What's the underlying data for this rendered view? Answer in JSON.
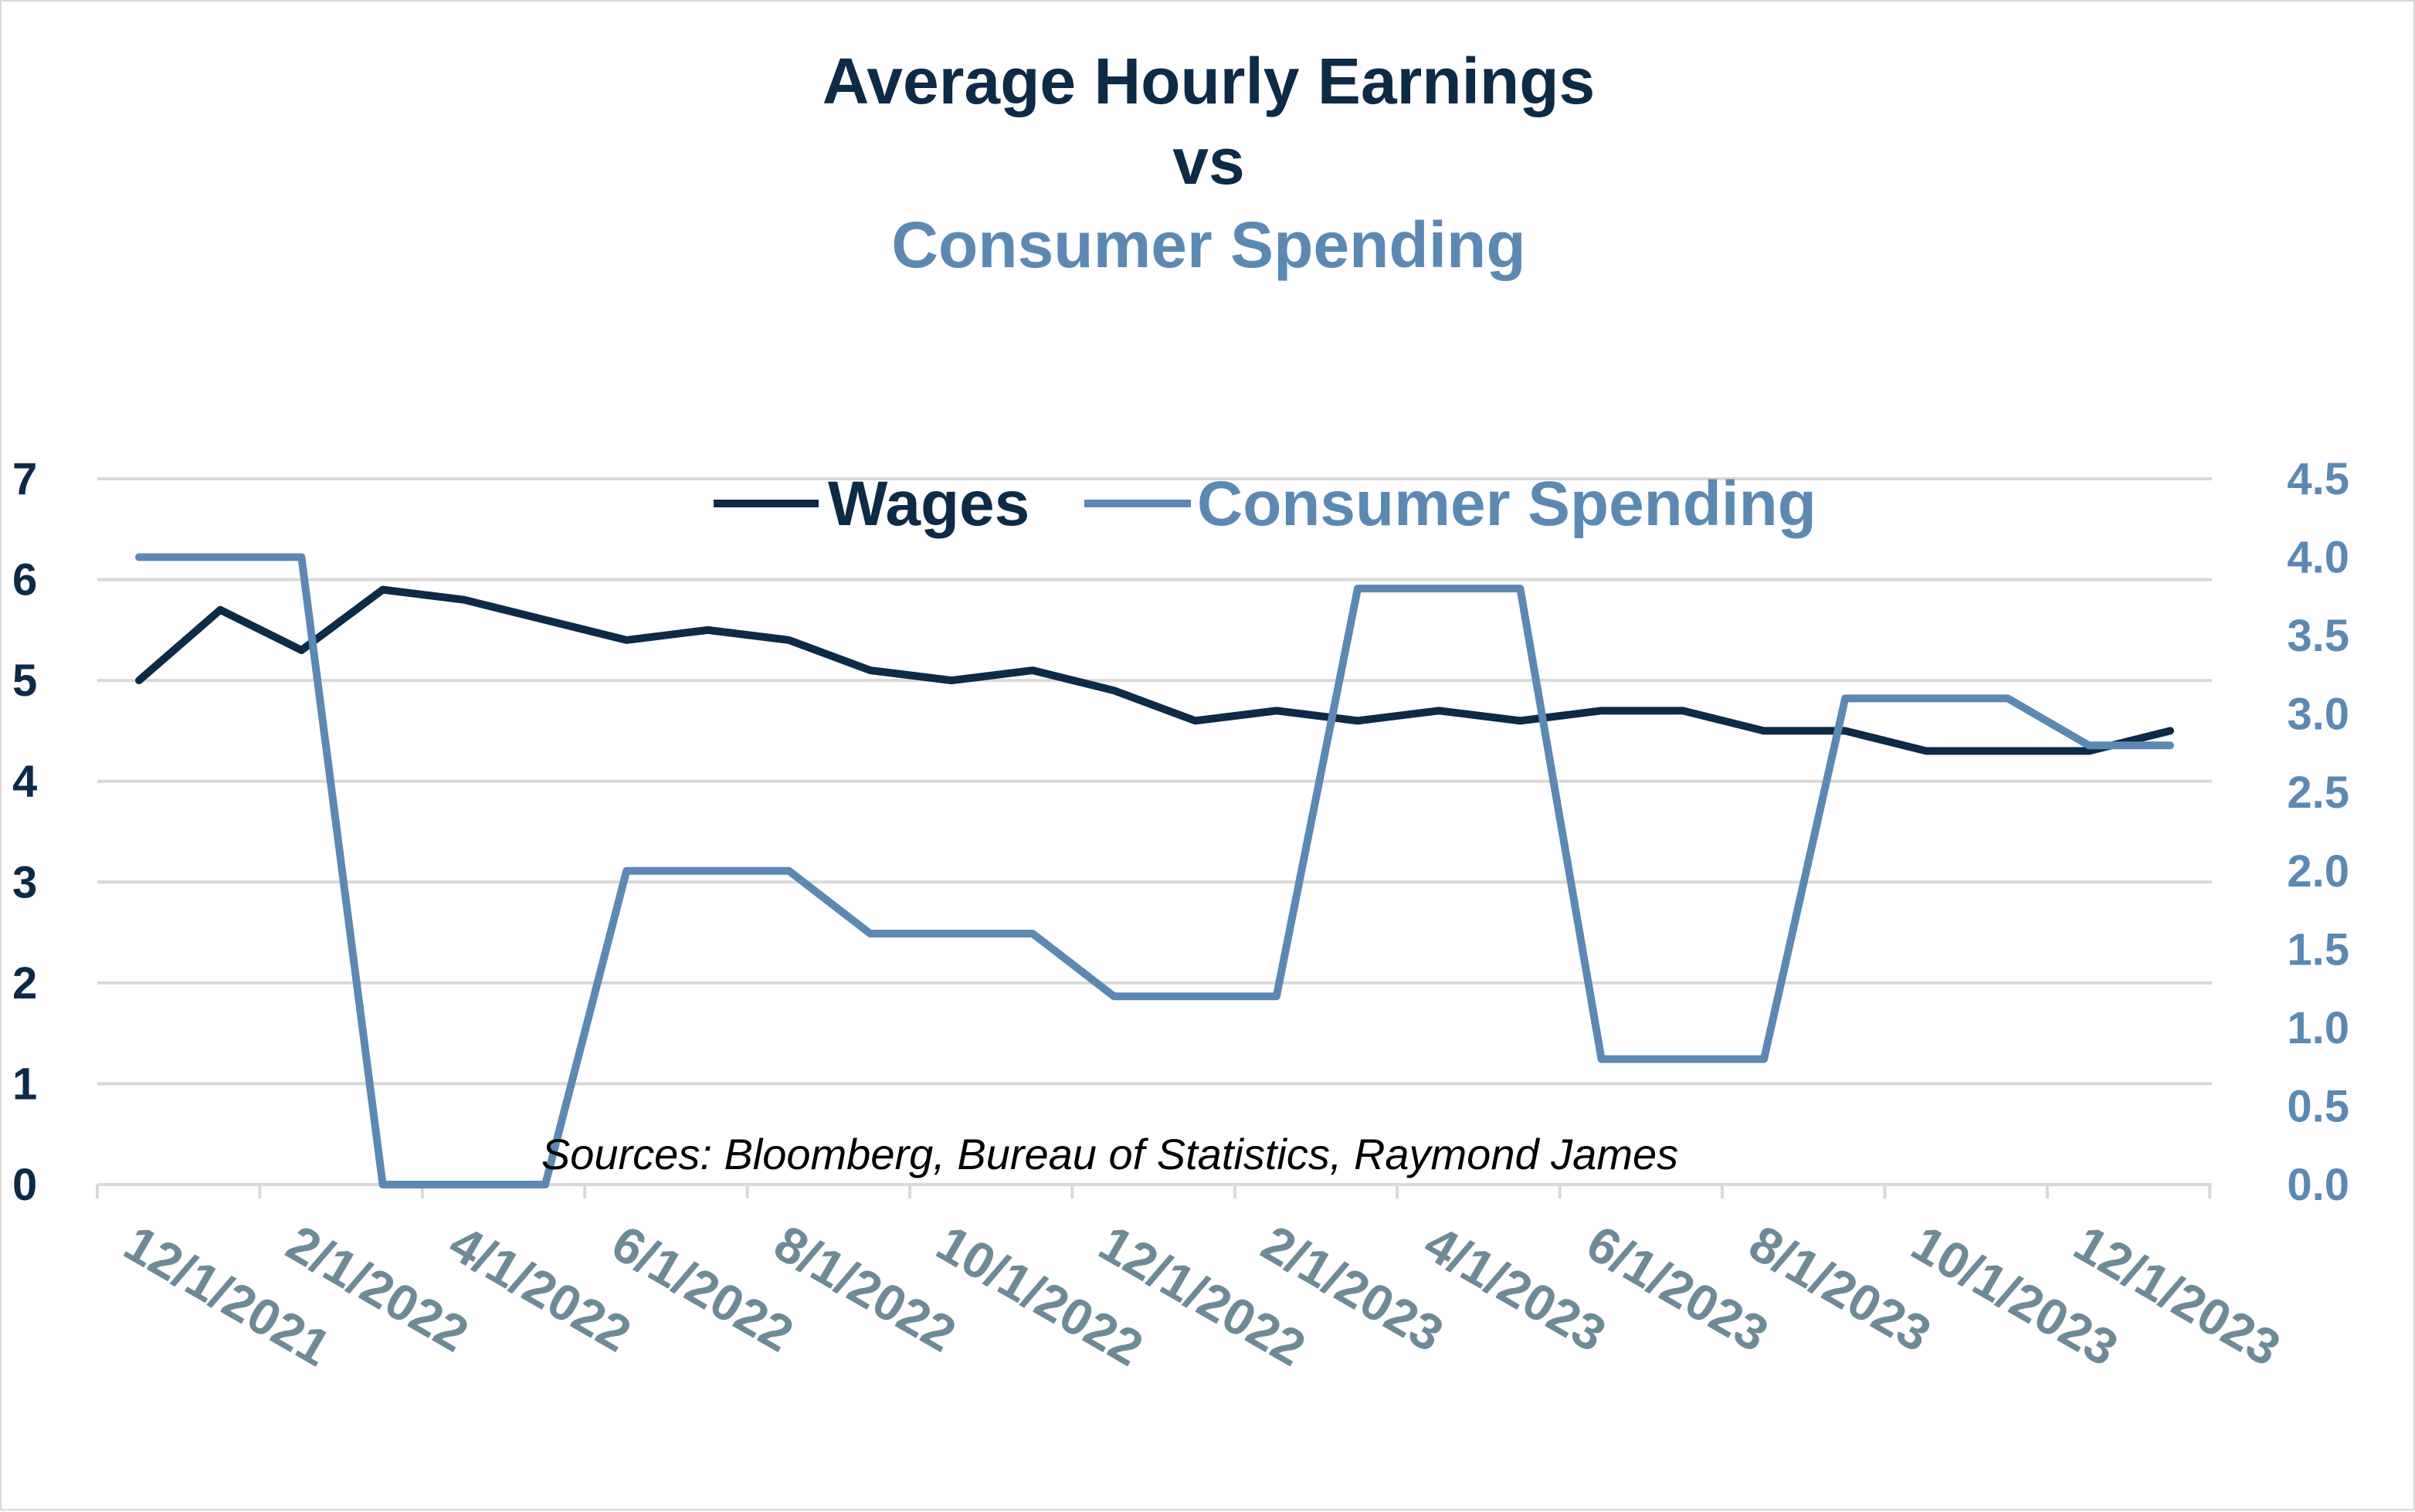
{
  "chart_data": {
    "type": "line",
    "title_lines": [
      "Average Hourly Earnings",
      "vs",
      "Consumer Spending"
    ],
    "x": [
      "12/1/2021",
      "1/1/2022",
      "2/1/2022",
      "3/1/2022",
      "4/1/2022",
      "5/1/2022",
      "6/1/2022",
      "7/1/2022",
      "8/1/2022",
      "9/1/2022",
      "10/1/2022",
      "11/1/2022",
      "12/1/2022",
      "1/1/2023",
      "2/1/2023",
      "3/1/2023",
      "4/1/2023",
      "5/1/2023",
      "6/1/2023",
      "7/1/2023",
      "8/1/2023",
      "9/1/2023",
      "10/1/2023",
      "11/1/2023",
      "12/1/2023",
      "1/1/2024"
    ],
    "x_tick_labels": [
      "12/1/2021",
      "2/1/2022",
      "4/1/2022",
      "6/1/2022",
      "8/1/2022",
      "10/1/2022",
      "12/1/2022",
      "2/1/2023",
      "4/1/2023",
      "6/1/2023",
      "8/1/2023",
      "10/1/2023",
      "12/1/2023"
    ],
    "y_left": {
      "ylim": [
        0,
        7
      ],
      "ticks": [
        "0",
        "1",
        "2",
        "3",
        "4",
        "5",
        "6",
        "7"
      ]
    },
    "y_right": {
      "ylim": [
        0,
        4.5
      ],
      "ticks": [
        "0.0",
        "0.5",
        "1.0",
        "1.5",
        "2.0",
        "2.5",
        "3.0",
        "3.5",
        "4.0",
        "4.5"
      ]
    },
    "series": [
      {
        "name": "Wages",
        "axis": "left",
        "color": "#0d2a47",
        "values": [
          5.0,
          5.7,
          5.3,
          5.9,
          5.8,
          5.6,
          5.4,
          5.5,
          5.4,
          5.1,
          5.0,
          5.1,
          4.9,
          4.6,
          4.7,
          4.6,
          4.7,
          4.6,
          4.7,
          4.7,
          4.5,
          4.5,
          4.3,
          4.3,
          4.3,
          4.5
        ]
      },
      {
        "name": "Consumer Spending",
        "axis": "right",
        "color": "#5b89b4",
        "values": [
          4.0,
          4.0,
          4.0,
          0.0,
          0.0,
          0.0,
          2.0,
          2.0,
          2.0,
          1.6,
          1.6,
          1.6,
          1.2,
          1.2,
          1.2,
          3.8,
          3.8,
          3.8,
          0.8,
          0.8,
          0.8,
          3.1,
          3.1,
          3.1,
          2.8,
          2.8
        ]
      }
    ],
    "legend_placement": "top-center",
    "grid": true,
    "annotation": "Sources: Bloomberg, Bureau of Statistics, Raymond James",
    "colors": {
      "title_dark": "#0d2a47",
      "title_light": "#5b89b4",
      "left_ticks": "#0d2a47",
      "right_ticks": "#5b89b4",
      "x_ticks": "#6e8a96",
      "grid": "#d9d9d9"
    }
  }
}
